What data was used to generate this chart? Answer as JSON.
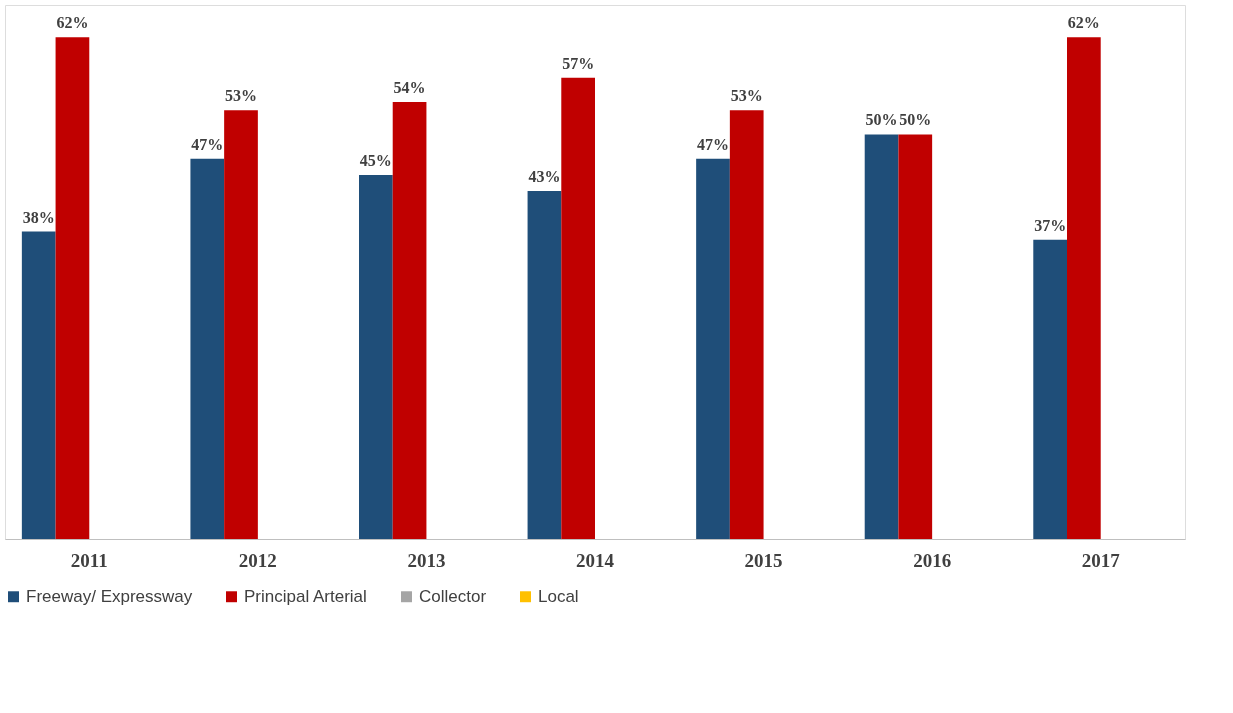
{
  "chart_data": {
    "type": "bar",
    "categories": [
      "2011",
      "2012",
      "2013",
      "2014",
      "2015",
      "2016",
      "2017"
    ],
    "series": [
      {
        "name": "Freeway/ Expressway",
        "color": "#1f4e79",
        "values": [
          38,
          47,
          45,
          43,
          47,
          50,
          37
        ],
        "value_labels": [
          "38%",
          "47%",
          "45%",
          "43%",
          "47%",
          "50%",
          "37%"
        ]
      },
      {
        "name": "Principal Arterial",
        "color": "#c00000",
        "values": [
          62,
          53,
          54,
          57,
          53,
          50,
          62
        ],
        "value_labels": [
          "62%",
          "53%",
          "54%",
          "57%",
          "53%",
          "50%",
          "62%"
        ]
      },
      {
        "name": "Collector",
        "color": "#a5a5a5",
        "values": [
          null,
          null,
          null,
          null,
          null,
          null,
          null
        ]
      },
      {
        "name": "Local",
        "color": "#ffc000",
        "values": [
          null,
          null,
          null,
          null,
          null,
          null,
          null
        ]
      }
    ],
    "ylim": [
      0,
      66
    ],
    "tick_labels": "x",
    "grid": false,
    "legend": "bottom"
  }
}
